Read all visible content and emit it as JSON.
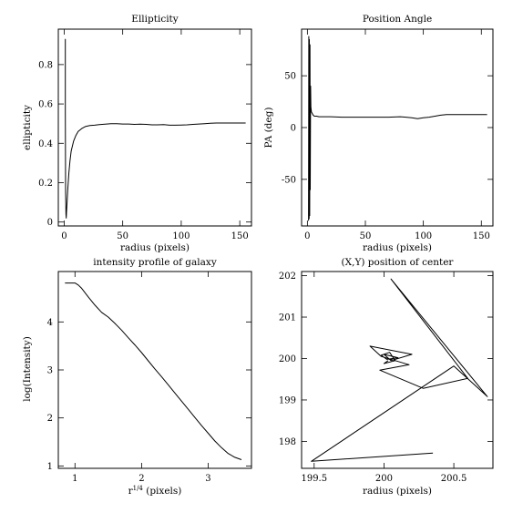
{
  "chart_data": [
    {
      "type": "line",
      "title": "Ellipticity",
      "xlabel": "radius (pixels)",
      "ylabel": "ellipticity",
      "xlim": [
        -5,
        160
      ],
      "ylim": [
        -0.02,
        0.98
      ],
      "x_ticks": [
        0,
        50,
        100,
        150
      ],
      "y_ticks": [
        0,
        0.2,
        0.4,
        0.6,
        0.8
      ],
      "x_tick_labels": [
        "0",
        "50",
        "100",
        "150"
      ],
      "y_tick_labels": [
        "0",
        "0.2",
        "0.4",
        "0.6",
        "0.8"
      ],
      "grid": false,
      "series": [
        {
          "x": [
            1,
            1,
            1.2,
            1.5,
            1.8,
            2,
            2.5,
            3,
            4,
            5,
            6,
            8,
            10,
            12,
            15,
            18,
            22,
            26,
            30,
            35,
            40,
            45,
            50,
            55,
            60,
            65,
            70,
            75,
            80,
            85,
            90,
            95,
            100,
            105,
            110,
            115,
            120,
            125,
            130,
            135,
            140,
            145,
            150,
            155
          ],
          "y": [
            0.93,
            0.56,
            0.15,
            0.04,
            0.02,
            0.05,
            0.1,
            0.16,
            0.25,
            0.31,
            0.36,
            0.41,
            0.44,
            0.46,
            0.475,
            0.485,
            0.49,
            0.492,
            0.495,
            0.497,
            0.5,
            0.5,
            0.498,
            0.498,
            0.496,
            0.497,
            0.496,
            0.494,
            0.494,
            0.495,
            0.492,
            0.492,
            0.493,
            0.494,
            0.496,
            0.498,
            0.5,
            0.502,
            0.503,
            0.503,
            0.503,
            0.503,
            0.503,
            0.503
          ]
        }
      ]
    },
    {
      "type": "line",
      "title": "Position Angle",
      "xlabel": "radius (pixels)",
      "ylabel": "PA (deg)",
      "xlim": [
        -5,
        160
      ],
      "ylim": [
        -95,
        95
      ],
      "x_ticks": [
        0,
        50,
        100,
        150
      ],
      "y_ticks": [
        -50,
        0,
        50
      ],
      "x_tick_labels": [
        "0",
        "50",
        "100",
        "150"
      ],
      "y_tick_labels": [
        "-50",
        "0",
        "50"
      ],
      "grid": false,
      "series": [
        {
          "x": [
            1,
            1.2,
            1.5,
            1.7,
            2,
            2.2,
            2.5,
            2.8,
            3,
            3.5,
            4,
            5,
            6,
            8,
            10,
            15,
            20,
            30,
            40,
            50,
            60,
            70,
            80,
            85,
            90,
            95,
            100,
            105,
            110,
            115,
            120,
            130,
            140,
            150,
            155
          ],
          "y": [
            -90,
            88,
            -88,
            85,
            -85,
            80,
            -60,
            40,
            20,
            15,
            14,
            12,
            11,
            11,
            10.5,
            10.5,
            10.5,
            10,
            10,
            10,
            10,
            10,
            10.5,
            10,
            9.5,
            8.5,
            9.5,
            10,
            11,
            12,
            12.5,
            12.5,
            12.5,
            12.5,
            12.5
          ]
        }
      ]
    },
    {
      "type": "line",
      "title": "intensity profile of galaxy",
      "xlabel": "r^1/4 (pixels)",
      "ylabel": "log(Intensity)",
      "xlim": [
        0.75,
        3.65
      ],
      "ylim": [
        0.95,
        5.05
      ],
      "x_ticks": [
        1,
        2,
        3
      ],
      "y_ticks": [
        1,
        2,
        3,
        4
      ],
      "x_tick_labels": [
        "1",
        "2",
        "3"
      ],
      "y_tick_labels": [
        "1",
        "2",
        "3",
        "4"
      ],
      "grid": false,
      "series": [
        {
          "x": [
            0.85,
            0.9,
            0.95,
            1.0,
            1.05,
            1.1,
            1.2,
            1.3,
            1.4,
            1.5,
            1.6,
            1.7,
            1.8,
            1.9,
            2.0,
            2.1,
            2.2,
            2.3,
            2.4,
            2.5,
            2.6,
            2.7,
            2.8,
            2.9,
            3.0,
            3.1,
            3.2,
            3.3,
            3.4,
            3.5
          ],
          "y": [
            4.81,
            4.81,
            4.81,
            4.81,
            4.77,
            4.7,
            4.52,
            4.35,
            4.2,
            4.1,
            3.97,
            3.83,
            3.67,
            3.52,
            3.36,
            3.19,
            3.02,
            2.86,
            2.69,
            2.52,
            2.35,
            2.18,
            2.01,
            1.84,
            1.68,
            1.52,
            1.38,
            1.26,
            1.18,
            1.13
          ]
        }
      ]
    },
    {
      "type": "line",
      "title": "(X,Y) position of center",
      "xlabel": "radius (pixels)",
      "ylabel": "",
      "xlim": [
        199.41,
        200.78
      ],
      "ylim": [
        197.35,
        202.1
      ],
      "x_ticks": [
        199.5,
        200,
        200.5
      ],
      "y_ticks": [
        198,
        199,
        200,
        201,
        202
      ],
      "x_tick_labels": [
        "199.5",
        "200",
        "200.5"
      ],
      "y_tick_labels": [
        "198",
        "199",
        "200",
        "201",
        "202"
      ],
      "grid": false,
      "series": [
        {
          "x": [
            200.35,
            199.48,
            200.5,
            200.74,
            200.05,
            200.6,
            200.28,
            199.97,
            200.18,
            199.98,
            199.9,
            200.2,
            200.05,
            200.0,
            200.1,
            200.02,
            199.98,
            200.04,
            200.08,
            200.0,
            200.03
          ],
          "y": [
            197.72,
            197.52,
            199.82,
            199.08,
            201.92,
            199.52,
            199.28,
            199.72,
            199.85,
            200.05,
            200.3,
            200.1,
            199.95,
            200.1,
            200.02,
            199.98,
            200.08,
            200.15,
            199.95,
            199.88,
            199.95
          ]
        }
      ]
    }
  ]
}
